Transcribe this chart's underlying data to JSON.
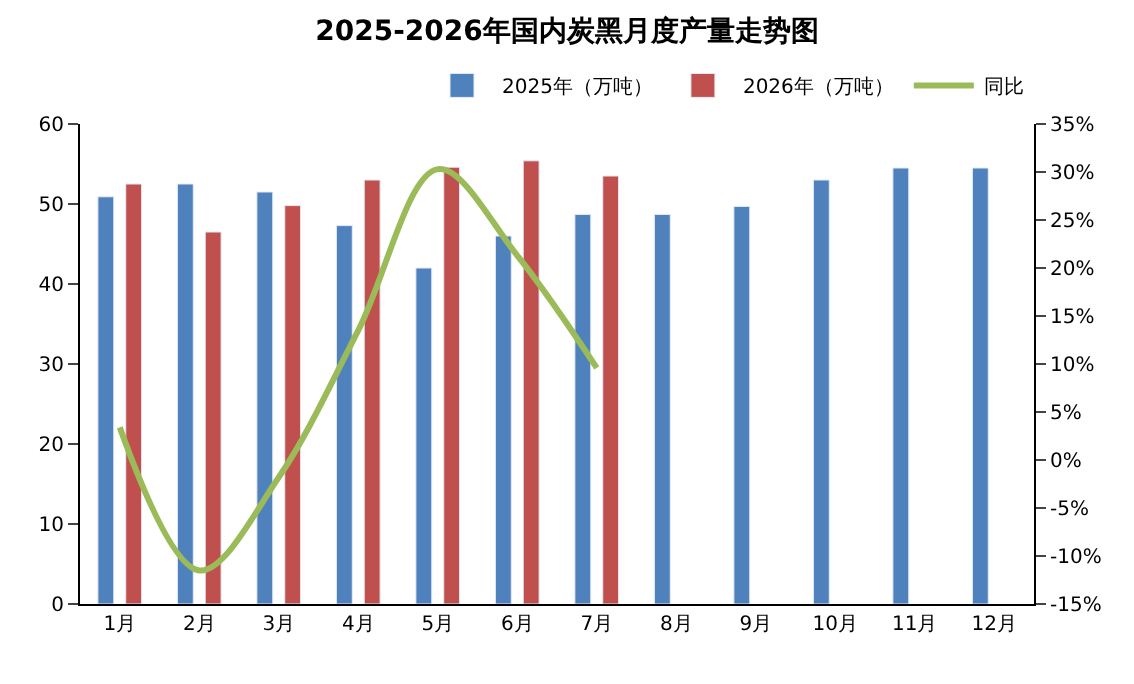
{
  "chart_data": {
    "type": "bar",
    "title": "2025-2026年国内炭黑月度产量走势图",
    "categories": [
      "1月",
      "2月",
      "3月",
      "4月",
      "5月",
      "6月",
      "7月",
      "8月",
      "9月",
      "10月",
      "11月",
      "12月"
    ],
    "series": [
      {
        "name": "2025年（万吨）",
        "color": "#4f81bd",
        "values": [
          50.9,
          52.5,
          51.5,
          47.3,
          42.0,
          46.0,
          48.7,
          48.7,
          49.7,
          53.0,
          54.5,
          54.5
        ]
      },
      {
        "name": "2026年（万吨）",
        "color": "#c0504d",
        "values": [
          52.5,
          46.5,
          49.8,
          53.0,
          54.6,
          55.4,
          53.5,
          null,
          null,
          null,
          null,
          null
        ]
      },
      {
        "name": "同比",
        "color": "#9bbb59",
        "type": "line",
        "axis": "y2",
        "values": [
          3.4,
          -11.5,
          -1.8,
          13.5,
          30.3,
          21.3,
          9.6,
          null,
          null,
          null,
          null,
          null
        ]
      }
    ],
    "ylim": [
      0,
      60
    ],
    "yticks": [
      0,
      10,
      20,
      30,
      40,
      50,
      60
    ],
    "y2lim": [
      -15,
      35
    ],
    "y2ticks": [
      {
        "value": -15,
        "label": "-15%"
      },
      {
        "value": -10,
        "label": "-10%"
      },
      {
        "value": -5,
        "label": "-5%"
      },
      {
        "value": 0,
        "label": "0%"
      },
      {
        "value": 5,
        "label": "5%"
      },
      {
        "value": 10,
        "label": "10%"
      },
      {
        "value": 15,
        "label": "15%"
      },
      {
        "value": 20,
        "label": "20%"
      },
      {
        "value": 25,
        "label": "25%"
      },
      {
        "value": 30,
        "label": "30%"
      },
      {
        "value": 35,
        "label": "35%"
      }
    ],
    "legend": "top right",
    "marker": "none"
  }
}
